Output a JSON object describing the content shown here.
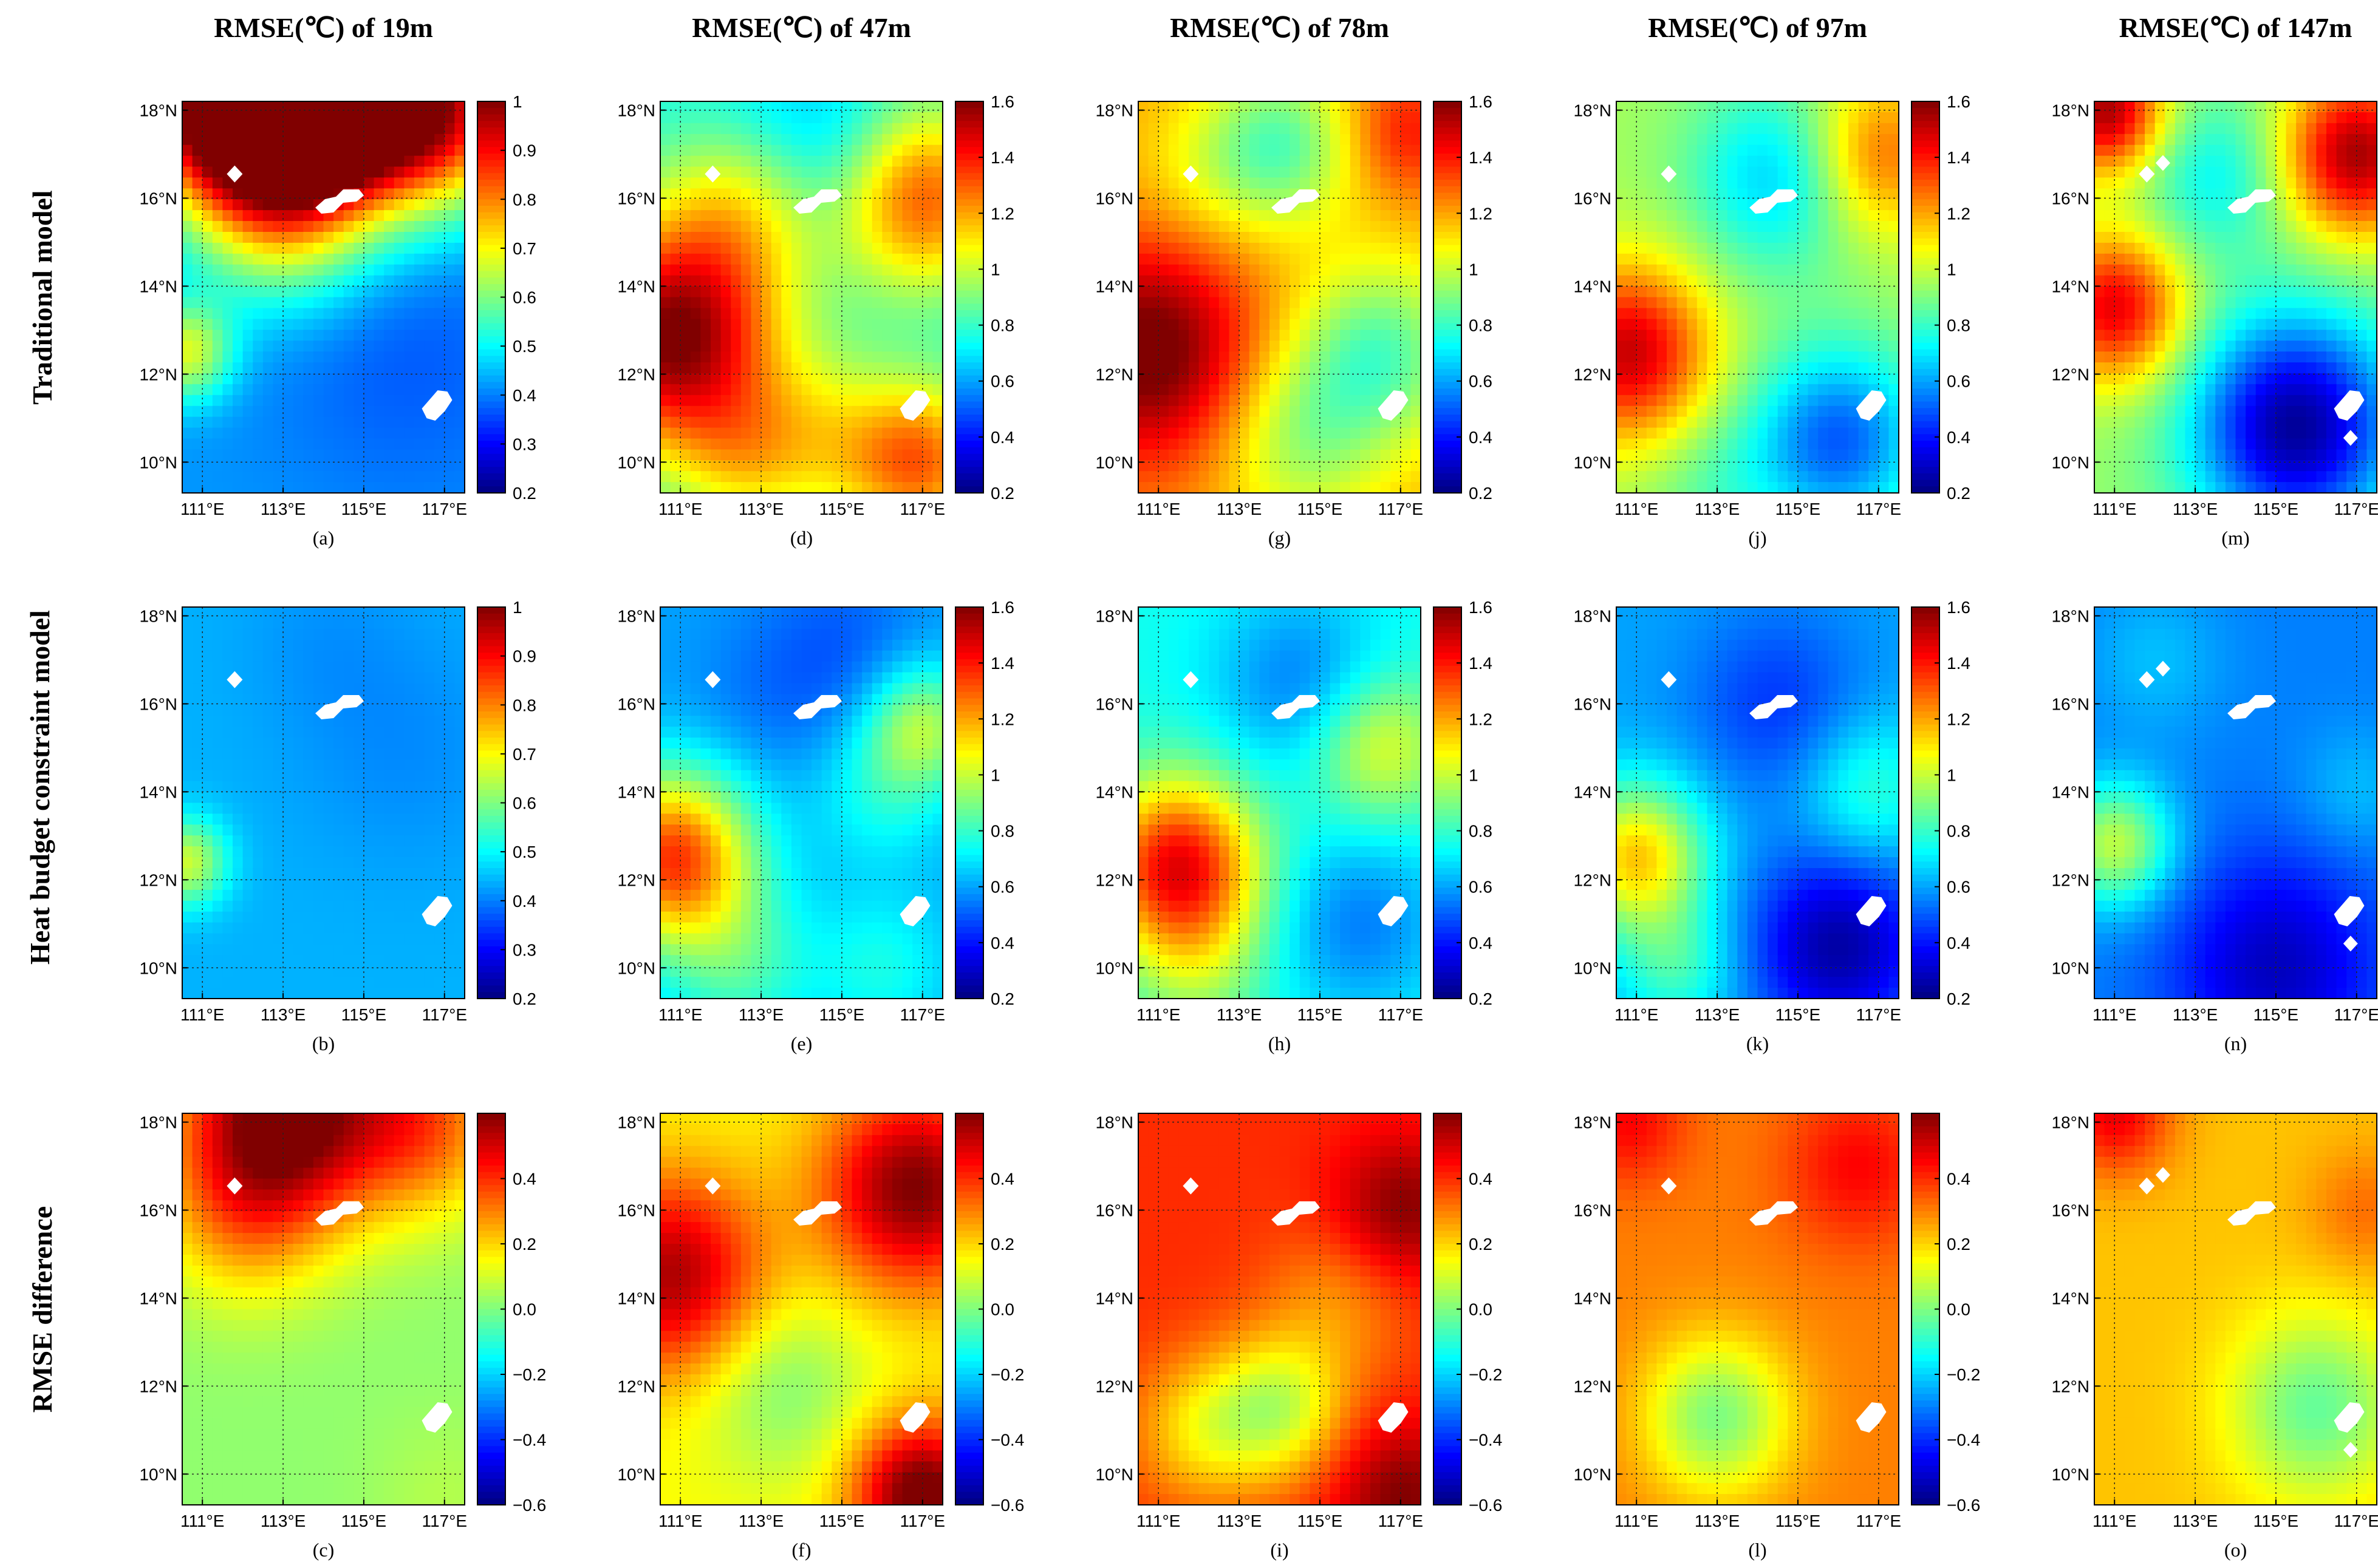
{
  "column_titles": [
    "RMSE(℃) of 19m",
    "RMSE(℃) of 47m",
    "RMSE(℃) of 78m",
    "RMSE(℃) of 97m",
    "RMSE(℃) of 147m"
  ],
  "row_labels": [
    "Traditional model",
    "Heat budget constraint model",
    "RMSE difference"
  ],
  "chart_data": {
    "type": "heatmap",
    "x_ticks": [
      "111°E",
      "113°E",
      "115°E",
      "117°E"
    ],
    "y_ticks": [
      "18°N",
      "16°N",
      "14°N",
      "12°N",
      "10°N"
    ],
    "xlim": [
      110.5,
      117.5
    ],
    "ylim": [
      9.3,
      18.2
    ],
    "colormap": "jet",
    "colorbars": {
      "rmse_19m": {
        "range": [
          0.2,
          1.0
        ],
        "ticks": [
          "0.2",
          "0.3",
          "0.4",
          "0.5",
          "0.6",
          "0.7",
          "0.8",
          "0.9",
          "1"
        ]
      },
      "rmse_deep": {
        "range": [
          0.2,
          1.6
        ],
        "ticks": [
          "0.2",
          "0.4",
          "0.6",
          "0.8",
          "1",
          "1.2",
          "1.4",
          "1.6"
        ]
      },
      "difference": {
        "range": [
          -0.6,
          0.6
        ],
        "ticks": [
          "-0.6",
          "-0.4",
          "-0.2",
          "0.0",
          "0.2",
          "0.4"
        ]
      }
    },
    "islands": [
      {
        "name": "small-island",
        "lon": 111.8,
        "lat": 16.55
      },
      {
        "name": "paracel-group",
        "lon": 114.4,
        "lat": 15.95
      },
      {
        "name": "south-island",
        "lon": 116.8,
        "lat": 11.3
      }
    ],
    "panels": [
      {
        "id": "a",
        "label": "(a)",
        "depth": "19m",
        "row": "traditional",
        "colorbar": "rmse_19m",
        "field": {
          "base": 0.42,
          "blobs": [
            {
              "lon": 111.5,
              "lat": 18.3,
              "v": 0.62,
              "r": 1.6
            },
            {
              "lon": 114.0,
              "lat": 18.3,
              "v": 0.68,
              "r": 1.6
            },
            {
              "lon": 116.8,
              "lat": 18.0,
              "v": 0.48,
              "r": 1.6
            },
            {
              "lon": 113.0,
              "lat": 16.0,
              "v": 0.3,
              "r": 1.6
            },
            {
              "lon": 110.6,
              "lat": 12.5,
              "v": 0.25,
              "r": 0.8
            },
            {
              "lon": 116.0,
              "lat": 12.5,
              "v": -0.05,
              "r": 2.5
            }
          ]
        }
      },
      {
        "id": "b",
        "label": "(b)",
        "depth": "19m",
        "row": "heat-budget",
        "colorbar": "rmse_19m",
        "field": {
          "base": 0.44,
          "blobs": [
            {
              "lon": 110.6,
              "lat": 12.4,
              "v": 0.22,
              "r": 0.7
            },
            {
              "lon": 116.0,
              "lat": 15.0,
              "v": -0.03,
              "r": 2.0
            },
            {
              "lon": 114.0,
              "lat": 17.5,
              "v": -0.02,
              "r": 1.5
            }
          ]
        }
      },
      {
        "id": "c",
        "label": "(c)",
        "depth": "19m",
        "row": "difference",
        "colorbar": "difference",
        "field": {
          "base": 0.02,
          "blobs": [
            {
              "lon": 113.0,
              "lat": 18.3,
              "v": 0.6,
              "r": 1.8
            },
            {
              "lon": 116.5,
              "lat": 18.0,
              "v": 0.3,
              "r": 1.5
            },
            {
              "lon": 112.0,
              "lat": 16.0,
              "v": 0.2,
              "r": 1.5
            },
            {
              "lon": 117.0,
              "lat": 9.5,
              "v": 0.04,
              "r": 1.3
            }
          ]
        }
      },
      {
        "id": "d",
        "label": "(d)",
        "depth": "47m",
        "row": "traditional",
        "colorbar": "rmse_deep",
        "field": {
          "base": 0.75,
          "blobs": [
            {
              "lon": 110.8,
              "lat": 12.8,
              "v": 0.85,
              "r": 1.8
            },
            {
              "lon": 112.5,
              "lat": 15.8,
              "v": 0.3,
              "r": 1.5
            },
            {
              "lon": 117.0,
              "lat": 16.0,
              "v": 0.55,
              "r": 1.5
            },
            {
              "lon": 117.0,
              "lat": 10.0,
              "v": 0.5,
              "r": 1.3
            },
            {
              "lon": 113.5,
              "lat": 17.5,
              "v": -0.1,
              "r": 1.5
            },
            {
              "lon": 115.0,
              "lat": 17.0,
              "v": -0.1,
              "r": 1.3
            },
            {
              "lon": 114.5,
              "lat": 10.5,
              "v": 0.25,
              "r": 1.5
            },
            {
              "lon": 112.5,
              "lat": 10.0,
              "v": 0.2,
              "r": 1.2
            }
          ]
        }
      },
      {
        "id": "e",
        "label": "(e)",
        "depth": "47m",
        "row": "heat-budget",
        "colorbar": "rmse_deep",
        "field": {
          "base": 0.6,
          "blobs": [
            {
              "lon": 110.8,
              "lat": 12.5,
              "v": 0.75,
              "r": 1.4
            },
            {
              "lon": 115.0,
              "lat": 17.2,
              "v": -0.1,
              "r": 1.5
            },
            {
              "lon": 113.0,
              "lat": 16.0,
              "v": -0.05,
              "r": 1.4
            },
            {
              "lon": 117.0,
              "lat": 15.5,
              "v": 0.35,
              "r": 1.0
            },
            {
              "lon": 116.0,
              "lat": 14.0,
              "v": 0.15,
              "r": 1.2
            },
            {
              "lon": 112.5,
              "lat": 10.0,
              "v": 0.2,
              "r": 1.3
            },
            {
              "lon": 116.0,
              "lat": 10.0,
              "v": 0.15,
              "r": 1.2
            }
          ]
        }
      },
      {
        "id": "f",
        "label": "(f)",
        "depth": "47m",
        "row": "difference",
        "colorbar": "difference",
        "field": {
          "base": 0.15,
          "blobs": [
            {
              "lon": 116.8,
              "lat": 16.5,
              "v": 0.45,
              "r": 1.6
            },
            {
              "lon": 110.8,
              "lat": 14.5,
              "v": 0.4,
              "r": 1.6
            },
            {
              "lon": 113.5,
              "lat": 12.0,
              "v": -0.15,
              "r": 1.5
            },
            {
              "lon": 117.0,
              "lat": 9.5,
              "v": 0.5,
              "r": 1.2
            },
            {
              "lon": 115.5,
              "lat": 12.0,
              "v": 0.0,
              "r": 1.2
            }
          ]
        }
      },
      {
        "id": "g",
        "label": "(g)",
        "depth": "78m",
        "row": "traditional",
        "colorbar": "rmse_deep",
        "field": {
          "base": 1.2,
          "blobs": [
            {
              "lon": 110.8,
              "lat": 12.5,
              "v": 0.45,
              "r": 1.8
            },
            {
              "lon": 114.0,
              "lat": 17.2,
              "v": -0.35,
              "r": 1.3
            },
            {
              "lon": 112.0,
              "lat": 16.5,
              "v": -0.1,
              "r": 1.3
            },
            {
              "lon": 116.5,
              "lat": 12.5,
              "v": -0.35,
              "r": 1.5
            },
            {
              "lon": 114.5,
              "lat": 10.5,
              "v": -0.25,
              "r": 1.5
            },
            {
              "lon": 117.2,
              "lat": 17.5,
              "v": 0.2,
              "r": 1.0
            }
          ]
        }
      },
      {
        "id": "h",
        "label": "(h)",
        "depth": "78m",
        "row": "heat-budget",
        "colorbar": "rmse_deep",
        "field": {
          "base": 0.75,
          "blobs": [
            {
              "lon": 111.5,
              "lat": 12.3,
              "v": 0.7,
              "r": 1.4
            },
            {
              "lon": 114.5,
              "lat": 16.5,
              "v": -0.2,
              "r": 1.5
            },
            {
              "lon": 116.0,
              "lat": 11.0,
              "v": -0.2,
              "r": 1.5
            },
            {
              "lon": 116.5,
              "lat": 15.0,
              "v": 0.3,
              "r": 1.2
            },
            {
              "lon": 112.0,
              "lat": 10.0,
              "v": 0.15,
              "r": 1.2
            }
          ]
        }
      },
      {
        "id": "i",
        "label": "(i)",
        "depth": "78m",
        "row": "difference",
        "colorbar": "difference",
        "field": {
          "base": 0.4,
          "blobs": [
            {
              "lon": 117.0,
              "lat": 16.0,
              "v": 0.2,
              "r": 1.2
            },
            {
              "lon": 117.0,
              "lat": 9.5,
              "v": 0.2,
              "r": 1.2
            },
            {
              "lon": 114.0,
              "lat": 11.5,
              "v": -0.3,
              "r": 1.2
            },
            {
              "lon": 112.0,
              "lat": 11.0,
              "v": -0.2,
              "r": 1.2
            },
            {
              "lon": 115.5,
              "lat": 14.0,
              "v": -0.12,
              "r": 1.3
            }
          ]
        }
      },
      {
        "id": "j",
        "label": "(j)",
        "depth": "97m",
        "row": "traditional",
        "colorbar": "rmse_deep",
        "field": {
          "base": 0.95,
          "blobs": [
            {
              "lon": 110.8,
              "lat": 12.5,
              "v": 0.55,
              "r": 1.4
            },
            {
              "lon": 114.5,
              "lat": 16.5,
              "v": -0.3,
              "r": 1.5
            },
            {
              "lon": 116.0,
              "lat": 10.5,
              "v": -0.45,
              "r": 1.5
            },
            {
              "lon": 117.0,
              "lat": 17.0,
              "v": 0.35,
              "r": 1.3
            },
            {
              "lon": 113.0,
              "lat": 9.5,
              "v": -0.1,
              "r": 1.2
            }
          ]
        }
      },
      {
        "id": "k",
        "label": "(k)",
        "depth": "97m",
        "row": "heat-budget",
        "colorbar": "rmse_deep",
        "field": {
          "base": 0.6,
          "blobs": [
            {
              "lon": 111.0,
              "lat": 12.5,
              "v": 0.55,
              "r": 1.2
            },
            {
              "lon": 114.5,
              "lat": 16.0,
              "v": -0.15,
              "r": 1.5
            },
            {
              "lon": 116.0,
              "lat": 10.5,
              "v": -0.35,
              "r": 1.5
            },
            {
              "lon": 116.8,
              "lat": 14.0,
              "v": 0.2,
              "r": 1.2
            },
            {
              "lon": 112.0,
              "lat": 10.0,
              "v": 0.2,
              "r": 1.0
            }
          ]
        }
      },
      {
        "id": "l",
        "label": "(l)",
        "depth": "97m",
        "row": "difference",
        "colorbar": "difference",
        "field": {
          "base": 0.3,
          "blobs": [
            {
              "lon": 113.0,
              "lat": 11.3,
              "v": -0.3,
              "r": 1.3
            },
            {
              "lon": 116.5,
              "lat": 17.0,
              "v": 0.15,
              "r": 1.3
            },
            {
              "lon": 110.8,
              "lat": 18.0,
              "v": 0.15,
              "r": 1.0
            }
          ]
        }
      },
      {
        "id": "m",
        "label": "(m)",
        "depth": "147m",
        "row": "traditional",
        "colorbar": "rmse_19m",
        "field": {
          "base": 0.62,
          "blobs": [
            {
              "lon": 111.0,
              "lat": 13.5,
              "v": 0.3,
              "r": 1.2
            },
            {
              "lon": 117.0,
              "lat": 17.0,
              "v": 0.35,
              "r": 1.3
            },
            {
              "lon": 110.8,
              "lat": 18.0,
              "v": 0.35,
              "r": 1.0
            },
            {
              "lon": 115.5,
              "lat": 10.8,
              "v": -0.4,
              "r": 1.8
            },
            {
              "lon": 113.5,
              "lat": 16.5,
              "v": -0.12,
              "r": 1.3
            }
          ]
        }
      },
      {
        "id": "n",
        "label": "(n)",
        "depth": "147m",
        "row": "heat-budget",
        "colorbar": "rmse_19m",
        "field": {
          "base": 0.4,
          "blobs": [
            {
              "lon": 111.0,
              "lat": 12.8,
              "v": 0.25,
              "r": 1.0
            },
            {
              "lon": 115.0,
              "lat": 10.0,
              "v": -0.15,
              "r": 1.8
            },
            {
              "lon": 112.0,
              "lat": 17.0,
              "v": 0.05,
              "r": 1.2
            },
            {
              "lon": 117.0,
              "lat": 14.0,
              "v": 0.05,
              "r": 1.0
            }
          ]
        }
      },
      {
        "id": "o",
        "label": "(o)",
        "depth": "147m",
        "row": "difference",
        "colorbar": "difference",
        "field": {
          "base": 0.22,
          "blobs": [
            {
              "lon": 116.0,
              "lat": 11.5,
              "v": -0.25,
              "r": 1.5
            },
            {
              "lon": 111.0,
              "lat": 18.2,
              "v": 0.25,
              "r": 1.0
            },
            {
              "lon": 117.2,
              "lat": 16.0,
              "v": 0.1,
              "r": 1.0
            }
          ]
        }
      }
    ]
  }
}
